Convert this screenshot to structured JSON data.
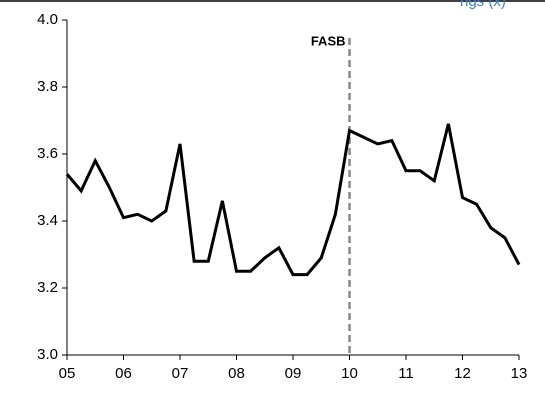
{
  "chart_data": {
    "type": "line",
    "title": "ngs (x)",
    "x": [
      5,
      5.25,
      5.5,
      5.75,
      6,
      6.25,
      6.5,
      6.75,
      7,
      7.25,
      7.5,
      7.75,
      8,
      8.25,
      8.5,
      8.75,
      9,
      9.25,
      9.5,
      9.75,
      10,
      10.25,
      10.5,
      10.75,
      11,
      11.25,
      11.5,
      11.75,
      12,
      12.25,
      12.5,
      12.75,
      13
    ],
    "series": [
      {
        "color": "#000000",
        "values": [
          3.54,
          3.49,
          3.58,
          3.5,
          3.41,
          3.42,
          3.4,
          3.43,
          3.63,
          3.28,
          3.28,
          3.46,
          3.25,
          3.25,
          3.29,
          3.32,
          3.24,
          3.24,
          3.29,
          3.42,
          3.67,
          3.65,
          3.63,
          3.64,
          3.55,
          3.55,
          3.52,
          3.69,
          3.47,
          3.45,
          3.38,
          3.35,
          3.27
        ]
      }
    ],
    "xlim": [
      5,
      13
    ],
    "xticks": [
      {
        "value": 5,
        "label": "05"
      },
      {
        "value": 6,
        "label": "06"
      },
      {
        "value": 7,
        "label": "07"
      },
      {
        "value": 8,
        "label": "08"
      },
      {
        "value": 9,
        "label": "09"
      },
      {
        "value": 10,
        "label": "10"
      },
      {
        "value": 11,
        "label": "11"
      },
      {
        "value": 12,
        "label": "12"
      },
      {
        "value": 13,
        "label": "13"
      }
    ],
    "ylim": [
      3,
      4
    ],
    "yticks": [
      {
        "value": 3,
        "label": "3.0"
      },
      3.2,
      3.4,
      3.6,
      3.8,
      {
        "value": 4,
        "label": "4.0"
      }
    ],
    "vline": {
      "x": 10,
      "label": "FASB",
      "color": "#888888"
    }
  }
}
